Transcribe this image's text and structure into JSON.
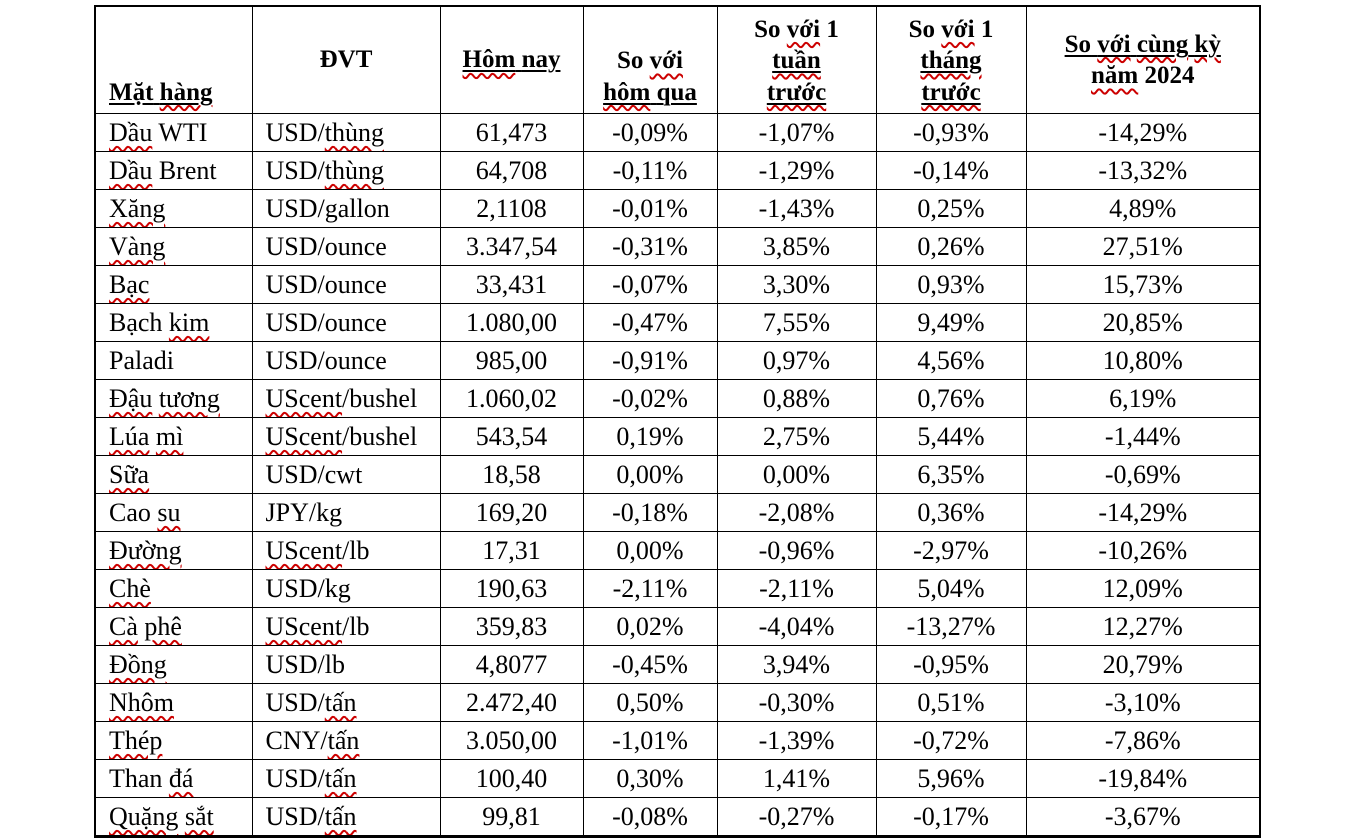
{
  "colors": {
    "text": "#000000",
    "table_border": "#000000",
    "squiggle_red": "#cc0000",
    "background": "#ffffff"
  },
  "table": {
    "columns": [
      {
        "key": "mat-hang",
        "lines": [
          {
            "text": "Mặt hàng",
            "underline": true
          }
        ]
      },
      {
        "key": "dvt",
        "lines": [
          {
            "text": "ĐVT",
            "underline": false
          }
        ]
      },
      {
        "key": "hom-nay",
        "lines": [
          {
            "text": "Hôm nay",
            "underline": true
          }
        ]
      },
      {
        "key": "so-voi-hom-qua",
        "lines": [
          {
            "text": "So với",
            "underline": false
          },
          {
            "text": "hôm qua",
            "underline": true
          }
        ]
      },
      {
        "key": "so-voi-1-tuan-truoc",
        "lines": [
          {
            "text": "So với 1",
            "underline": false
          },
          {
            "text": "tuần",
            "underline": true
          },
          {
            "text": "trước",
            "underline": true
          }
        ]
      },
      {
        "key": "so-voi-1-thang-truoc",
        "lines": [
          {
            "text": "So với 1",
            "underline": false
          },
          {
            "text": "tháng",
            "underline": true
          },
          {
            "text": "trước",
            "underline": true
          }
        ]
      },
      {
        "key": "so-voi-cung-ky-nam-2024",
        "lines": [
          {
            "text": "So với cùng kỳ",
            "underline": true
          },
          {
            "text": "năm 2024",
            "underline": false
          }
        ]
      }
    ],
    "rows": [
      {
        "name": "Dầu WTI",
        "unit": "USD/thùng",
        "today": "61,473",
        "vs_yesterday": "-0,09%",
        "vs_week": "-1,07%",
        "vs_month": "-0,93%",
        "vs_2024": "-14,29%"
      },
      {
        "name": "Dầu Brent",
        "unit": "USD/thùng",
        "today": "64,708",
        "vs_yesterday": "-0,11%",
        "vs_week": "-1,29%",
        "vs_month": "-0,14%",
        "vs_2024": "-13,32%"
      },
      {
        "name": "Xăng",
        "unit": "USD/gallon",
        "today": "2,1108",
        "vs_yesterday": "-0,01%",
        "vs_week": "-1,43%",
        "vs_month": "0,25%",
        "vs_2024": "4,89%"
      },
      {
        "name": "Vàng",
        "unit": "USD/ounce",
        "today": "3.347,54",
        "vs_yesterday": "-0,31%",
        "vs_week": "3,85%",
        "vs_month": "0,26%",
        "vs_2024": "27,51%"
      },
      {
        "name": "Bạc",
        "unit": "USD/ounce",
        "today": "33,431",
        "vs_yesterday": "-0,07%",
        "vs_week": "3,30%",
        "vs_month": "0,93%",
        "vs_2024": "15,73%"
      },
      {
        "name": "Bạch kim",
        "unit": "USD/ounce",
        "today": "1.080,00",
        "vs_yesterday": "-0,47%",
        "vs_week": "7,55%",
        "vs_month": "9,49%",
        "vs_2024": "20,85%"
      },
      {
        "name": "Paladi",
        "unit": "USD/ounce",
        "today": "985,00",
        "vs_yesterday": "-0,91%",
        "vs_week": "0,97%",
        "vs_month": "4,56%",
        "vs_2024": "10,80%"
      },
      {
        "name": "Đậu tương",
        "unit": "UScent/bushel",
        "today": "1.060,02",
        "vs_yesterday": "-0,02%",
        "vs_week": "0,88%",
        "vs_month": "0,76%",
        "vs_2024": "6,19%"
      },
      {
        "name": "Lúa mì",
        "unit": "UScent/bushel",
        "today": "543,54",
        "vs_yesterday": "0,19%",
        "vs_week": "2,75%",
        "vs_month": "5,44%",
        "vs_2024": "-1,44%"
      },
      {
        "name": "Sữa",
        "unit": "USD/cwt",
        "today": "18,58",
        "vs_yesterday": "0,00%",
        "vs_week": "0,00%",
        "vs_month": "6,35%",
        "vs_2024": "-0,69%"
      },
      {
        "name": "Cao su",
        "unit": "JPY/kg",
        "today": "169,20",
        "vs_yesterday": "-0,18%",
        "vs_week": "-2,08%",
        "vs_month": "0,36%",
        "vs_2024": "-14,29%"
      },
      {
        "name": "Đường",
        "unit": "UScent/lb",
        "today": "17,31",
        "vs_yesterday": "0,00%",
        "vs_week": "-0,96%",
        "vs_month": "-2,97%",
        "vs_2024": "-10,26%"
      },
      {
        "name": "Chè",
        "unit": "USD/kg",
        "today": "190,63",
        "vs_yesterday": "-2,11%",
        "vs_week": "-2,11%",
        "vs_month": "5,04%",
        "vs_2024": "12,09%"
      },
      {
        "name": "Cà phê",
        "unit": "UScent/lb",
        "today": "359,83",
        "vs_yesterday": "0,02%",
        "vs_week": "-4,04%",
        "vs_month": "-13,27%",
        "vs_2024": "12,27%"
      },
      {
        "name": "Đồng",
        "unit": "USD/lb",
        "today": "4,8077",
        "vs_yesterday": "-0,45%",
        "vs_week": "3,94%",
        "vs_month": "-0,95%",
        "vs_2024": "20,79%"
      },
      {
        "name": "Nhôm",
        "unit": "USD/tấn",
        "today": "2.472,40",
        "vs_yesterday": "0,50%",
        "vs_week": "-0,30%",
        "vs_month": "0,51%",
        "vs_2024": "-3,10%"
      },
      {
        "name": "Thép",
        "unit": "CNY/tấn",
        "today": "3.050,00",
        "vs_yesterday": "-1,01%",
        "vs_week": "-1,39%",
        "vs_month": "-0,72%",
        "vs_2024": "-7,86%"
      },
      {
        "name": "Than đá",
        "unit": "USD/tấn",
        "today": "100,40",
        "vs_yesterday": "0,30%",
        "vs_week": "1,41%",
        "vs_month": "5,96%",
        "vs_2024": "-19,84%"
      },
      {
        "name": "Quặng sắt",
        "unit": "USD/tấn",
        "today": "99,81",
        "vs_yesterday": "-0,08%",
        "vs_week": "-0,27%",
        "vs_month": "-0,17%",
        "vs_2024": "-3,67%"
      }
    ]
  },
  "spellcheck": {
    "misspelled_words": [
      "hàng",
      "với",
      "Hôm",
      "hôm",
      "tuần",
      "trước",
      "tháng",
      "cùng",
      "kỳ",
      "năm",
      "Dầu",
      "thùng",
      "Xăng",
      "Vàng",
      "Bạc",
      "kim",
      "Đậu",
      "tương",
      "UScent",
      "Lúa",
      "mì",
      "Sữa",
      "su",
      "Đường",
      "Chè",
      "Cà",
      "phê",
      "Đồng",
      "Nhôm",
      "tấn",
      "Thép",
      "đá",
      "Quặng",
      "sắt"
    ]
  }
}
